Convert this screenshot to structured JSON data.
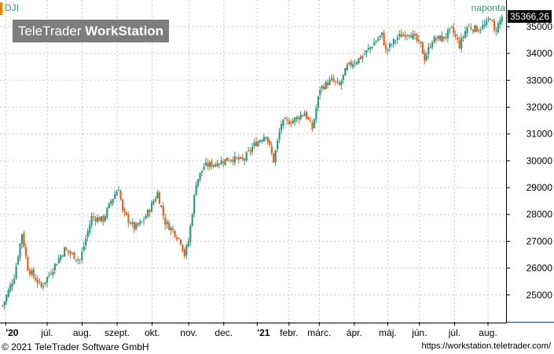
{
  "header": {
    "symbol": "DJI",
    "interval": "naponta",
    "logo_text_light": "TeleTrader ",
    "logo_text_bold": "WorkStation"
  },
  "price_tag": "35366,26",
  "footer": {
    "copyright": "© 2021  TeleTrader Software GmbH",
    "url": "https://workstation.teletrader.com/"
  },
  "colors": {
    "up": "#2a9a80",
    "down": "#e8601c",
    "grid": "#c8c8c8",
    "accent_orange": "#f08000"
  },
  "chart_data": {
    "type": "candlestick",
    "symbol": "DJI",
    "interval": "naponta",
    "ylim": [
      24000,
      35700
    ],
    "y_ticks": [
      25000,
      26000,
      27000,
      28000,
      29000,
      30000,
      31000,
      32000,
      33000,
      34000,
      35000
    ],
    "y_tick_labels": [
      "25000",
      "26000",
      "27000",
      "28000",
      "29000",
      "30000",
      "31000",
      "32000",
      "33000",
      "34000",
      "35000"
    ],
    "x_ticks": [
      "'20",
      "júl.",
      "aug.",
      "szept.",
      "okt.",
      "nov.",
      "dec.",
      "'21",
      "febr.",
      "márc.",
      "ápr.",
      "máj.",
      "jún.",
      "júl.",
      "aug."
    ],
    "last_value": 35366.26,
    "close_path": [
      [
        0,
        24600
      ],
      [
        6,
        25700
      ],
      [
        10,
        27300
      ],
      [
        13,
        26000
      ],
      [
        20,
        25300
      ],
      [
        26,
        26000
      ],
      [
        32,
        26700
      ],
      [
        40,
        26300
      ],
      [
        46,
        27900
      ],
      [
        52,
        27800
      ],
      [
        56,
        28500
      ],
      [
        60,
        29000
      ],
      [
        62,
        28100
      ],
      [
        68,
        27500
      ],
      [
        72,
        27700
      ],
      [
        76,
        28200
      ],
      [
        80,
        28800
      ],
      [
        84,
        27700
      ],
      [
        88,
        27400
      ],
      [
        92,
        27000
      ],
      [
        94,
        26500
      ],
      [
        96,
        27000
      ],
      [
        100,
        29200
      ],
      [
        104,
        29800
      ],
      [
        110,
        29900
      ],
      [
        118,
        30100
      ],
      [
        124,
        30000
      ],
      [
        130,
        30600
      ],
      [
        136,
        31000
      ],
      [
        140,
        30000
      ],
      [
        144,
        31400
      ],
      [
        150,
        31500
      ],
      [
        156,
        31800
      ],
      [
        160,
        31200
      ],
      [
        164,
        32700
      ],
      [
        170,
        33000
      ],
      [
        174,
        32800
      ],
      [
        178,
        33500
      ],
      [
        186,
        33900
      ],
      [
        192,
        34400
      ],
      [
        196,
        34700
      ],
      [
        198,
        34100
      ],
      [
        204,
        34600
      ],
      [
        210,
        34800
      ],
      [
        216,
        34300
      ],
      [
        218,
        33800
      ],
      [
        222,
        34500
      ],
      [
        228,
        34600
      ],
      [
        232,
        34900
      ],
      [
        236,
        34300
      ],
      [
        240,
        35000
      ],
      [
        246,
        34900
      ],
      [
        250,
        35100
      ],
      [
        252,
        35400
      ],
      [
        254,
        34800
      ],
      [
        258,
        35366
      ]
    ]
  }
}
